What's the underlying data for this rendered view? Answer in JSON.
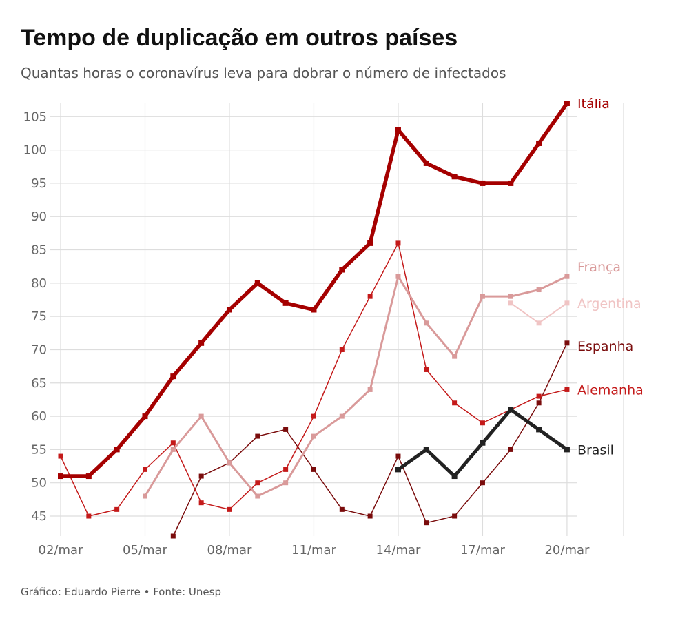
{
  "chart_data": {
    "type": "line",
    "title": "Tempo de duplicação em outros países",
    "subtitle": "Quantas horas o coronavírus leva para dobrar o número de infectados",
    "source": "Gráfico: Eduardo Pierre • Fonte: Unesp",
    "categories": [
      "02/mar",
      null,
      null,
      "05/mar",
      null,
      null,
      "08/mar",
      null,
      null,
      "11/mar",
      null,
      null,
      "14/mar",
      null,
      null,
      "17/mar",
      null,
      null,
      "20/mar"
    ],
    "ylim": [
      42,
      107
    ],
    "yticks": [
      45,
      50,
      55,
      60,
      65,
      70,
      75,
      80,
      85,
      90,
      95,
      100,
      105
    ],
    "grid": true,
    "series": [
      {
        "name": "Espanha",
        "color": "#7a0c0c",
        "values": [
          null,
          null,
          null,
          null,
          42,
          51,
          53,
          57,
          58,
          52,
          46,
          45,
          54,
          44,
          45,
          50,
          55,
          62,
          71
        ]
      },
      {
        "name": "Alemanha",
        "color": "#c41a1a",
        "values": [
          54,
          45,
          46,
          52,
          56,
          47,
          46,
          50,
          52,
          60,
          70,
          78,
          86,
          67,
          62,
          59,
          61,
          63,
          64
        ]
      },
      {
        "name": "Argentina",
        "color": "#f0c4c4",
        "values": [
          null,
          null,
          null,
          null,
          null,
          null,
          null,
          null,
          null,
          null,
          null,
          null,
          null,
          null,
          null,
          null,
          77,
          74,
          77
        ]
      },
      {
        "name": "França",
        "color": "#d99a9a",
        "values": [
          null,
          null,
          null,
          48,
          55,
          60,
          53,
          48,
          50,
          57,
          60,
          64,
          81,
          74,
          69,
          78,
          78,
          79,
          81
        ]
      },
      {
        "name": "Brasil",
        "color": "#222222",
        "values": [
          null,
          null,
          null,
          null,
          null,
          null,
          null,
          null,
          null,
          null,
          null,
          null,
          52,
          55,
          51,
          56,
          61,
          58,
          55
        ]
      },
      {
        "name": "Itália",
        "color": "#a50000",
        "values": [
          51,
          51,
          55,
          60,
          66,
          71,
          76,
          80,
          77,
          76,
          82,
          86,
          103,
          98,
          96,
          95,
          95,
          101,
          107
        ]
      }
    ]
  }
}
